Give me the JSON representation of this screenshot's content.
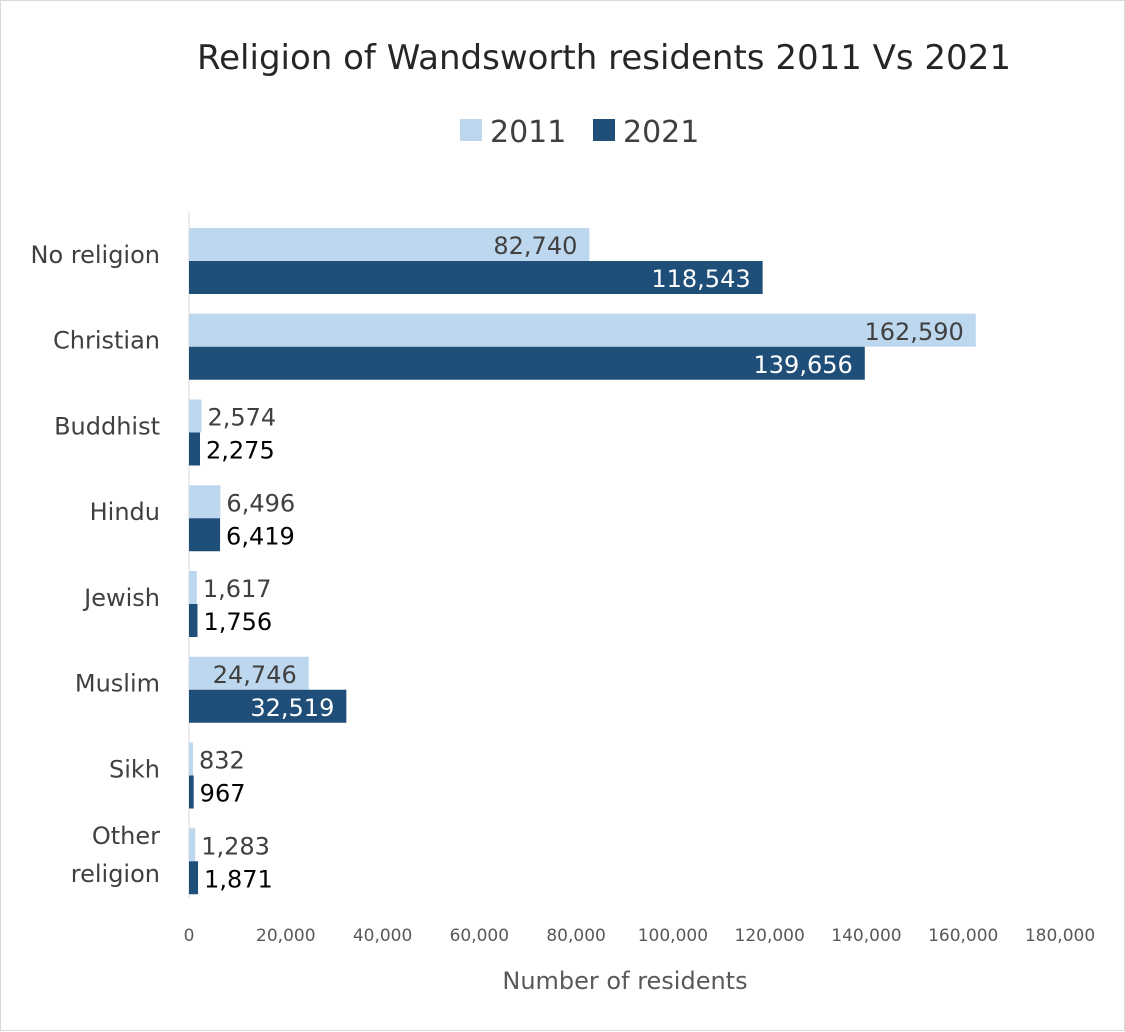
{
  "chart_data": {
    "type": "bar",
    "orientation": "horizontal",
    "title": "Religion of Wandsworth residents 2011 Vs 2021",
    "xlabel": "Number of residents",
    "ylabel": "",
    "categories": [
      "No religion",
      "Christian",
      "Buddhist",
      "Hindu",
      "Jewish",
      "Muslim",
      "Sikh",
      "Other religion"
    ],
    "series": [
      {
        "name": "2011",
        "color": "#bdd7ee",
        "values": [
          82740,
          162590,
          2574,
          6496,
          1617,
          24746,
          832,
          1283
        ],
        "labels": [
          "82,740",
          "162,590",
          "2,574",
          "6,496",
          "1,617",
          "24,746",
          "832",
          "1,283"
        ]
      },
      {
        "name": "2021",
        "color": "#1f4e79",
        "values": [
          118543,
          139656,
          2275,
          6419,
          1756,
          32519,
          967,
          1871
        ],
        "labels": [
          "118,543",
          "139,656",
          "2,275",
          "6,419",
          "1,756",
          "32,519",
          "967",
          "1,871"
        ]
      }
    ],
    "xlim": [
      0,
      180000
    ],
    "xticks": [
      0,
      20000,
      40000,
      60000,
      80000,
      100000,
      120000,
      140000,
      160000,
      180000
    ],
    "xtick_labels": [
      "0",
      "20,000",
      "40,000",
      "60,000",
      "80,000",
      "100,000",
      "120,000",
      "140,000",
      "160,000",
      "180,000"
    ],
    "legend_position": "top",
    "grid": false
  }
}
